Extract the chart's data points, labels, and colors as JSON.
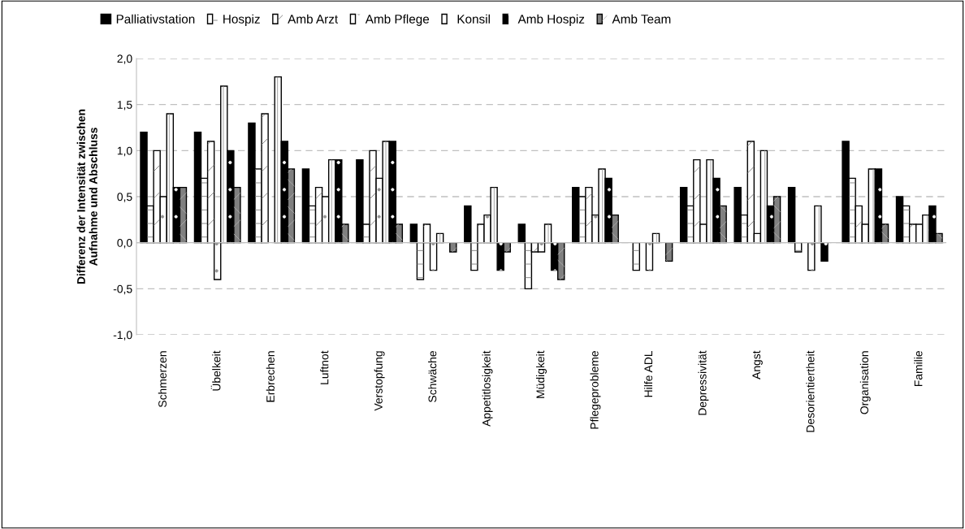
{
  "chart_data": {
    "type": "bar",
    "ylabel": "Differenz der Intensität zwischen\nAufnahme und Abschluss",
    "categories": [
      "Schmerzen",
      "Übelkeit",
      "Erbrechen",
      "Luftnot",
      "Verstopfung",
      "Schwäche",
      "Appetitlosigkeit",
      "Müdigkeit",
      "Pflegeprobleme",
      "Hilfe ADL",
      "Depressivität",
      "Angst",
      "Desorientiertheit",
      "Organisation",
      "Familie"
    ],
    "series": [
      {
        "name": "Palliativstation",
        "color": "#000000",
        "values": [
          1.2,
          1.2,
          1.3,
          0.8,
          0.9,
          0.2,
          0.4,
          0.2,
          0.6,
          null,
          0.6,
          0.6,
          0.6,
          1.1,
          0.5
        ]
      },
      {
        "name": "Hospiz",
        "color": "#ffffff",
        "values": [
          0.4,
          0.7,
          0.8,
          0.4,
          0.2,
          -0.4,
          -0.3,
          -0.5,
          0.5,
          -0.3,
          0.4,
          0.3,
          -0.1,
          0.7,
          0.4
        ]
      },
      {
        "name": "Amb Arzt",
        "color": "#ffffff",
        "values": [
          1.0,
          1.1,
          1.4,
          0.6,
          1.0,
          0.2,
          0.2,
          -0.1,
          0.6,
          null,
          0.9,
          1.1,
          null,
          0.4,
          0.2
        ]
      },
      {
        "name": "Amb Pflege",
        "color": "#ffffff",
        "values": [
          0.5,
          -0.4,
          null,
          0.5,
          0.7,
          -0.3,
          0.3,
          -0.1,
          0.3,
          -0.3,
          0.2,
          0.1,
          -0.3,
          0.2,
          0.2
        ]
      },
      {
        "name": "Konsil",
        "color": "#ffffff",
        "values": [
          1.4,
          1.7,
          1.8,
          0.9,
          1.1,
          0.1,
          0.6,
          0.2,
          0.8,
          0.1,
          0.9,
          1.0,
          0.4,
          0.8,
          0.3
        ]
      },
      {
        "name": "Amb Hospiz",
        "color": "#000000",
        "values": [
          0.6,
          1.0,
          1.1,
          0.9,
          1.1,
          null,
          -0.3,
          -0.3,
          0.7,
          null,
          0.7,
          0.4,
          -0.2,
          0.8,
          0.4
        ]
      },
      {
        "name": "Amb Team",
        "color": "#808080",
        "values": [
          0.6,
          0.6,
          0.8,
          0.2,
          0.2,
          -0.1,
          -0.1,
          -0.4,
          0.3,
          -0.2,
          0.4,
          0.5,
          null,
          0.2,
          0.1
        ]
      }
    ],
    "ylim": [
      -1.0,
      2.0
    ],
    "yticks": [
      {
        "value": -1.0,
        "label": "-1,0"
      },
      {
        "value": -0.5,
        "label": "-0,5"
      },
      {
        "value": 0.0,
        "label": "0,0"
      },
      {
        "value": 0.5,
        "label": "0,5"
      },
      {
        "value": 1.0,
        "label": "1,0"
      },
      {
        "value": 1.5,
        "label": "1,5"
      },
      {
        "value": 2.0,
        "label": "2,0"
      }
    ],
    "grid": "y",
    "legend": "top"
  }
}
